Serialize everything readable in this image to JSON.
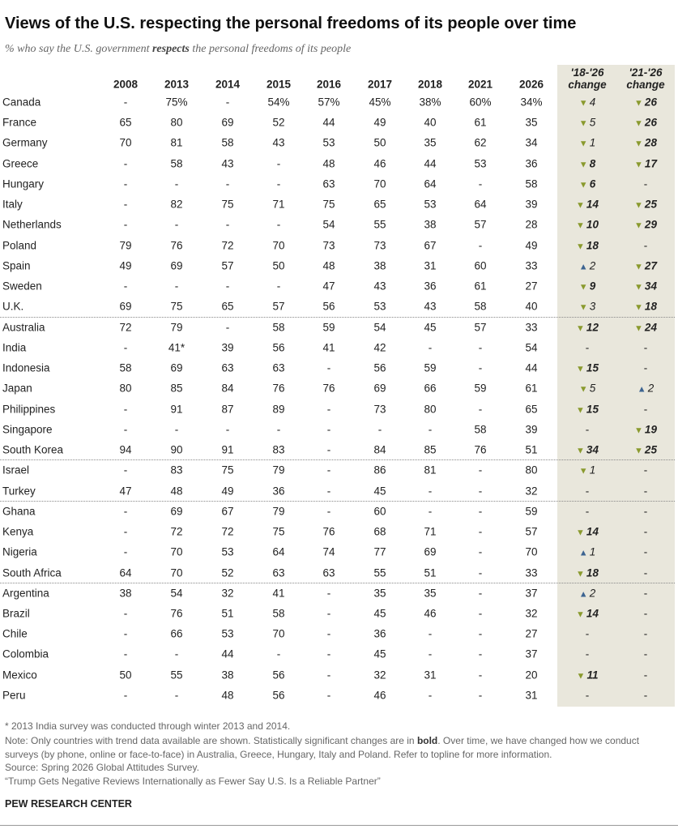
{
  "header": {
    "title": "Views of the U.S. respecting the personal freedoms of its people over time",
    "subtitle": [
      "% who say the U.S. government ",
      "respects",
      " the personal freedoms of its people"
    ]
  },
  "table": {
    "columns": [
      "2008",
      "2013",
      "2014",
      "2015",
      "2016",
      "2017",
      "2018",
      "2021",
      "2026"
    ],
    "change_columns": [
      [
        "'18-'26",
        "change"
      ],
      [
        "'21-'26",
        "change"
      ]
    ],
    "groups": [
      {
        "rows": [
          {
            "country": "Canada",
            "cells": [
              "-",
              "75%",
              "-",
              "54%",
              "57%",
              "45%",
              "38%",
              "60%",
              "34%"
            ],
            "changes": [
              {
                "arrow": "▼",
                "value": 4,
                "bold": false,
                "color": "#8a9a2e"
              },
              {
                "arrow": "▼",
                "value": 26,
                "bold": true,
                "color": "#8a9a2e"
              }
            ]
          },
          {
            "country": "France",
            "cells": [
              65,
              80,
              69,
              52,
              44,
              49,
              40,
              61,
              35
            ],
            "changes": [
              {
                "arrow": "▼",
                "value": 5,
                "bold": false,
                "color": "#8a9a2e"
              },
              {
                "arrow": "▼",
                "value": 26,
                "bold": true,
                "color": "#8a9a2e"
              }
            ]
          },
          {
            "country": "Germany",
            "cells": [
              70,
              81,
              58,
              43,
              53,
              50,
              35,
              62,
              34
            ],
            "changes": [
              {
                "arrow": "▼",
                "value": 1,
                "bold": false,
                "color": "#8a9a2e"
              },
              {
                "arrow": "▼",
                "value": 28,
                "bold": true,
                "color": "#8a9a2e"
              }
            ]
          },
          {
            "country": "Greece",
            "cells": [
              "-",
              58,
              43,
              "-",
              48,
              46,
              44,
              53,
              36
            ],
            "changes": [
              {
                "arrow": "▼",
                "value": 8,
                "bold": true,
                "color": "#8a9a2e"
              },
              {
                "arrow": "▼",
                "value": 17,
                "bold": true,
                "color": "#8a9a2e"
              }
            ]
          },
          {
            "country": "Hungary",
            "cells": [
              "-",
              "-",
              "-",
              "-",
              63,
              70,
              64,
              "-",
              58
            ],
            "changes": [
              {
                "arrow": "▼",
                "value": 6,
                "bold": true,
                "color": "#8a9a2e"
              },
              "-"
            ]
          },
          {
            "country": "Italy",
            "cells": [
              "-",
              82,
              75,
              71,
              75,
              65,
              53,
              64,
              39
            ],
            "changes": [
              {
                "arrow": "▼",
                "value": 14,
                "bold": true,
                "color": "#8a9a2e"
              },
              {
                "arrow": "▼",
                "value": 25,
                "bold": true,
                "color": "#8a9a2e"
              }
            ]
          },
          {
            "country": "Netherlands",
            "cells": [
              "-",
              "-",
              "-",
              "-",
              54,
              55,
              38,
              57,
              28
            ],
            "changes": [
              {
                "arrow": "▼",
                "value": 10,
                "bold": true,
                "color": "#8a9a2e"
              },
              {
                "arrow": "▼",
                "value": 29,
                "bold": true,
                "color": "#8a9a2e"
              }
            ]
          },
          {
            "country": "Poland",
            "cells": [
              79,
              76,
              72,
              70,
              73,
              73,
              67,
              "-",
              49
            ],
            "changes": [
              {
                "arrow": "▼",
                "value": 18,
                "bold": true,
                "color": "#8a9a2e"
              },
              "-"
            ]
          },
          {
            "country": "Spain",
            "cells": [
              49,
              69,
              57,
              50,
              48,
              38,
              31,
              60,
              33
            ],
            "changes": [
              {
                "arrow": "▲",
                "value": 2,
                "bold": false,
                "color": "#3d6491"
              },
              {
                "arrow": "▼",
                "value": 27,
                "bold": true,
                "color": "#8a9a2e"
              }
            ]
          },
          {
            "country": "Sweden",
            "cells": [
              "-",
              "-",
              "-",
              "-",
              47,
              43,
              36,
              61,
              27
            ],
            "changes": [
              {
                "arrow": "▼",
                "value": 9,
                "bold": true,
                "color": "#8a9a2e"
              },
              {
                "arrow": "▼",
                "value": 34,
                "bold": true,
                "color": "#8a9a2e"
              }
            ]
          },
          {
            "country": "U.K.",
            "cells": [
              69,
              75,
              65,
              57,
              56,
              53,
              43,
              58,
              40
            ],
            "changes": [
              {
                "arrow": "▼",
                "value": 3,
                "bold": false,
                "color": "#8a9a2e"
              },
              {
                "arrow": "▼",
                "value": 18,
                "bold": true,
                "color": "#8a9a2e"
              }
            ]
          }
        ]
      },
      {
        "rows": [
          {
            "country": "Australia",
            "cells": [
              72,
              79,
              "-",
              58,
              59,
              54,
              45,
              57,
              33
            ],
            "changes": [
              {
                "arrow": "▼",
                "value": 12,
                "bold": true,
                "color": "#8a9a2e"
              },
              {
                "arrow": "▼",
                "value": 24,
                "bold": true,
                "color": "#8a9a2e"
              }
            ]
          },
          {
            "country": "India",
            "cells": [
              "-",
              "41*",
              39,
              56,
              41,
              42,
              "-",
              "-",
              54
            ],
            "changes": [
              "-",
              "-"
            ]
          },
          {
            "country": "Indonesia",
            "cells": [
              58,
              69,
              63,
              63,
              "-",
              56,
              59,
              "-",
              44
            ],
            "changes": [
              {
                "arrow": "▼",
                "value": 15,
                "bold": true,
                "color": "#8a9a2e"
              },
              "-"
            ]
          },
          {
            "country": "Japan",
            "cells": [
              80,
              85,
              84,
              76,
              76,
              69,
              66,
              59,
              61
            ],
            "changes": [
              {
                "arrow": "▼",
                "value": 5,
                "bold": false,
                "color": "#8a9a2e"
              },
              {
                "arrow": "▲",
                "value": 2,
                "bold": false,
                "color": "#3d6491"
              }
            ]
          },
          {
            "country": "Philippines",
            "cells": [
              "-",
              91,
              87,
              89,
              "-",
              73,
              80,
              "-",
              65
            ],
            "changes": [
              {
                "arrow": "▼",
                "value": 15,
                "bold": true,
                "color": "#8a9a2e"
              },
              "-"
            ]
          },
          {
            "country": "Singapore",
            "cells": [
              "-",
              "-",
              "-",
              "-",
              "-",
              "-",
              "-",
              58,
              39
            ],
            "changes": [
              "-",
              {
                "arrow": "▼",
                "value": 19,
                "bold": true,
                "color": "#8a9a2e"
              }
            ]
          },
          {
            "country": "South Korea",
            "cells": [
              94,
              90,
              91,
              83,
              "-",
              84,
              85,
              76,
              51
            ],
            "changes": [
              {
                "arrow": "▼",
                "value": 34,
                "bold": true,
                "color": "#8a9a2e"
              },
              {
                "arrow": "▼",
                "value": 25,
                "bold": true,
                "color": "#8a9a2e"
              }
            ]
          }
        ]
      },
      {
        "rows": [
          {
            "country": "Israel",
            "cells": [
              "-",
              83,
              75,
              79,
              "-",
              86,
              81,
              "-",
              80
            ],
            "changes": [
              {
                "arrow": "▼",
                "value": 1,
                "bold": false,
                "color": "#8a9a2e"
              },
              "-"
            ]
          },
          {
            "country": "Turkey",
            "cells": [
              47,
              48,
              49,
              36,
              "-",
              45,
              "-",
              "-",
              32
            ],
            "changes": [
              "-",
              "-"
            ]
          }
        ]
      },
      {
        "rows": [
          {
            "country": "Ghana",
            "cells": [
              "-",
              69,
              67,
              79,
              "-",
              60,
              "-",
              "-",
              59
            ],
            "changes": [
              "-",
              "-"
            ]
          },
          {
            "country": "Kenya",
            "cells": [
              "-",
              72,
              72,
              75,
              76,
              68,
              71,
              "-",
              57
            ],
            "changes": [
              {
                "arrow": "▼",
                "value": 14,
                "bold": true,
                "color": "#8a9a2e"
              },
              "-"
            ]
          },
          {
            "country": "Nigeria",
            "cells": [
              "-",
              70,
              53,
              64,
              74,
              77,
              69,
              "-",
              70
            ],
            "changes": [
              {
                "arrow": "▲",
                "value": 1,
                "bold": false,
                "color": "#3d6491"
              },
              "-"
            ]
          },
          {
            "country": "South Africa",
            "cells": [
              64,
              70,
              52,
              63,
              63,
              55,
              51,
              "-",
              33
            ],
            "changes": [
              {
                "arrow": "▼",
                "value": 18,
                "bold": true,
                "color": "#8a9a2e"
              },
              "-"
            ]
          }
        ]
      },
      {
        "rows": [
          {
            "country": "Argentina",
            "cells": [
              38,
              54,
              32,
              41,
              "-",
              35,
              35,
              "-",
              37
            ],
            "changes": [
              {
                "arrow": "▲",
                "value": 2,
                "bold": false,
                "color": "#3d6491"
              },
              "-"
            ]
          },
          {
            "country": "Brazil",
            "cells": [
              "-",
              76,
              51,
              58,
              "-",
              45,
              46,
              "-",
              32
            ],
            "changes": [
              {
                "arrow": "▼",
                "value": 14,
                "bold": true,
                "color": "#8a9a2e"
              },
              "-"
            ]
          },
          {
            "country": "Chile",
            "cells": [
              "-",
              66,
              53,
              70,
              "-",
              36,
              "-",
              "-",
              27
            ],
            "changes": [
              "-",
              "-"
            ]
          },
          {
            "country": "Colombia",
            "cells": [
              "-",
              "-",
              44,
              "-",
              "-",
              45,
              "-",
              "-",
              37
            ],
            "changes": [
              "-",
              "-"
            ]
          },
          {
            "country": "Mexico",
            "cells": [
              50,
              55,
              38,
              56,
              "-",
              32,
              31,
              "-",
              20
            ],
            "changes": [
              {
                "arrow": "▼",
                "value": 11,
                "bold": true,
                "color": "#8a9a2e"
              },
              "-"
            ]
          },
          {
            "country": "Peru",
            "cells": [
              "-",
              "-",
              48,
              56,
              "-",
              46,
              "-",
              "-",
              31
            ],
            "changes": [
              "-",
              "-"
            ]
          }
        ]
      }
    ]
  },
  "footer": {
    "footnote": "* 2013 India survey was conducted through winter 2013 and 2014.",
    "note": [
      "Note: Only countries with trend data available are shown. Statistically significant changes are in ",
      "bold",
      ". Over time, we have changed how we conduct surveys (by phone, online or face-to-face) in Australia, Greece, Hungary, Italy and Poland. Refer to topline for more information."
    ],
    "source": "Source: Spring 2026 Global Attitudes Survey.",
    "report": "“Trump Gets Negative Reviews Internationally as Fewer Say U.S. Is a Reliable Partner”",
    "brand": "PEW RESEARCH CENTER"
  }
}
